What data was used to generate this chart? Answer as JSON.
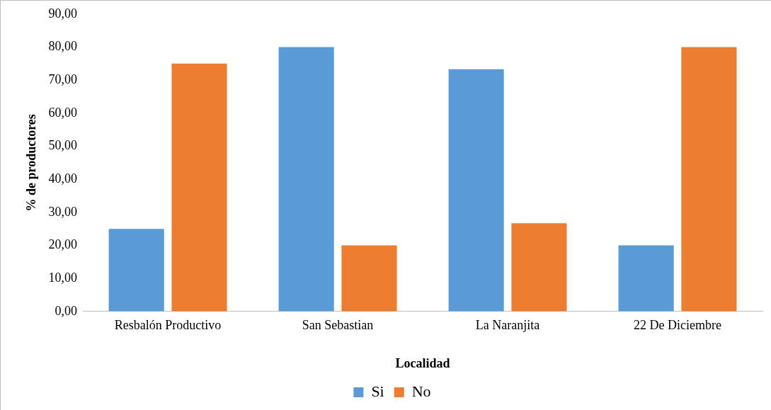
{
  "chart_data": {
    "type": "bar",
    "xlabel": "Localidad",
    "ylabel": "% de productores",
    "categories": [
      "Resbalón Productivo",
      "San Sebastian",
      "La Naranjita",
      "22 De Diciembre"
    ],
    "series": [
      {
        "name": "Si",
        "color": "#5b9bd5",
        "values": [
          25,
          80,
          73.3,
          20
        ]
      },
      {
        "name": "No",
        "color": "#ed7d31",
        "values": [
          75,
          20,
          26.7,
          80
        ]
      }
    ],
    "ylim": [
      0,
      90
    ],
    "yticks": [
      {
        "value": 0,
        "label": "0,00"
      },
      {
        "value": 10,
        "label": "10,00"
      },
      {
        "value": 20,
        "label": "20,00"
      },
      {
        "value": 30,
        "label": "30,00"
      },
      {
        "value": 40,
        "label": "40,00"
      },
      {
        "value": 50,
        "label": "50,00"
      },
      {
        "value": 60,
        "label": "60,00"
      },
      {
        "value": 70,
        "label": "70,00"
      },
      {
        "value": 80,
        "label": "80,00"
      },
      {
        "value": 90,
        "label": "90,00"
      }
    ],
    "grid": false,
    "legend": "bottom"
  }
}
